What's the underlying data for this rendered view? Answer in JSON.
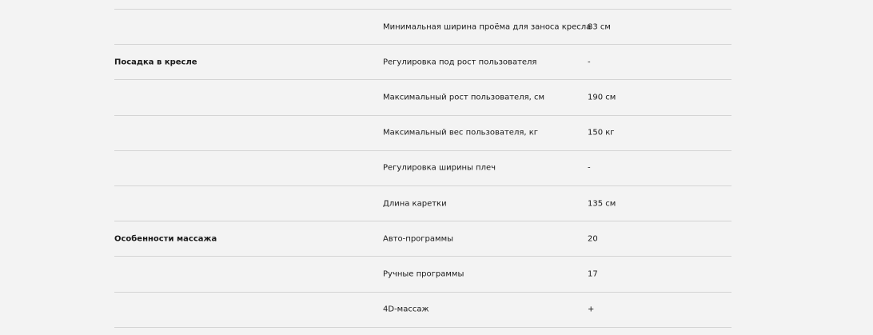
{
  "rows": [
    {
      "group": "",
      "param": "Минимальная ширина проёма для заноса кресла",
      "value": "83 см"
    },
    {
      "group": "Посадка в кресле",
      "param": "Регулировка под рост пользователя",
      "value": "-"
    },
    {
      "group": "",
      "param": "Максимальный рост пользователя, см",
      "value": "190 см"
    },
    {
      "group": "",
      "param": "Максимальный вес пользователя, кг",
      "value": "150 кг"
    },
    {
      "group": "",
      "param": "Регулировка ширины плеч",
      "value": "-"
    },
    {
      "group": "",
      "param": "Длина каретки",
      "value": "135 см"
    },
    {
      "group": "Особенности массажа",
      "param": "Авто-программы",
      "value": "20"
    },
    {
      "group": "",
      "param": "Ручные программы",
      "value": "17"
    },
    {
      "group": "",
      "param": "4D-массаж",
      "value": "+"
    }
  ]
}
